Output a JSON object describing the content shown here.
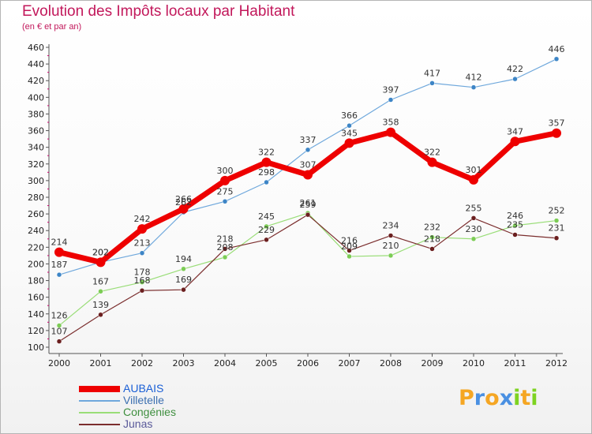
{
  "header": {
    "title": "Evolution des Impôts locaux par Habitant",
    "subtitle": "(en € et par an)"
  },
  "colors": {
    "title": "#c2185b",
    "axis": "#555555",
    "grid_tick": "#d0006f"
  },
  "chart_data": {
    "type": "line",
    "title": "Evolution des Impôts locaux par Habitant",
    "subtitle": "(en € et par an)",
    "xlabel": "",
    "ylabel": "",
    "ylim": [
      100,
      460
    ],
    "yticks": [
      100,
      120,
      140,
      160,
      180,
      200,
      220,
      240,
      260,
      280,
      300,
      320,
      340,
      360,
      380,
      400,
      420,
      440,
      460
    ],
    "x": [
      "2000",
      "2001",
      "2002",
      "2003",
      "2004",
      "2005",
      "2006",
      "2007",
      "2008",
      "2009",
      "2010",
      "2011",
      "2012"
    ],
    "legend_position": "bottom-left",
    "series": [
      {
        "name": "Villetelle",
        "color": "#6fa8dc",
        "marker": "#3d85c6",
        "width": 1.2,
        "values": [
          187,
          202,
          213,
          262,
          275,
          298,
          337,
          366,
          397,
          417,
          412,
          422,
          446
        ]
      },
      {
        "name": "Congénies",
        "color": "#99dd77",
        "marker": "#7ccc55",
        "width": 1.2,
        "values": [
          126,
          167,
          178,
          194,
          208,
          245,
          261,
          209,
          210,
          232,
          230,
          246,
          252
        ]
      },
      {
        "name": "Junas",
        "color": "#7b2e2e",
        "marker": "#6b1f1f",
        "width": 1.2,
        "values": [
          107,
          139,
          168,
          169,
          218,
          229,
          259,
          216,
          234,
          218,
          255,
          235,
          231
        ]
      },
      {
        "name": "AUBAIS",
        "color": "#ee0000",
        "marker": "#ee0000",
        "width": 7,
        "values": [
          214,
          202,
          242,
          266,
          300,
          322,
          307,
          345,
          358,
          322,
          301,
          347,
          357
        ]
      }
    ],
    "legend_order": [
      "AUBAIS",
      "Villetelle",
      "Congénies",
      "Junas"
    ]
  },
  "logo": {
    "letters": [
      "P",
      "r",
      "o",
      "x",
      "i",
      "t",
      "i"
    ],
    "colors": [
      "#f5a623",
      "#4a90e2",
      "#f5a623",
      "#4a90e2",
      "#7ed321",
      "#f5a623",
      "#7ed321"
    ]
  }
}
